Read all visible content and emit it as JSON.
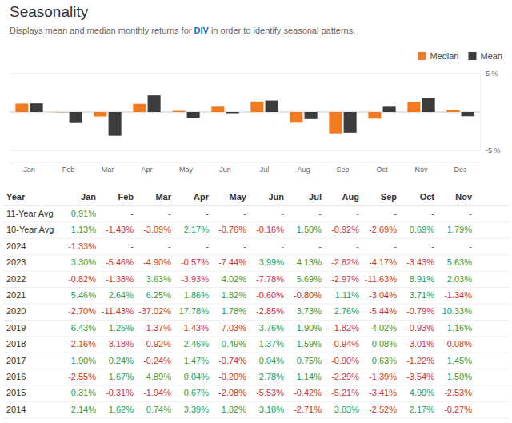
{
  "header": {
    "title": "Seasonality",
    "subtitle": [
      "Displays mean and median monthly returns for ",
      "DIV",
      " in order to identify seasonal patterns."
    ]
  },
  "chart_data": {
    "type": "bar",
    "categories": [
      "Jan",
      "Feb",
      "Mar",
      "Apr",
      "May",
      "Jun",
      "Jul",
      "Aug",
      "Sep",
      "Oct",
      "Nov",
      "Dec"
    ],
    "series": [
      {
        "name": "Median",
        "color": "#f47a1f",
        "values": [
          1.1,
          -0.04,
          -0.58,
          1.07,
          0.15,
          0.7,
          1.37,
          -1.38,
          -2.78,
          -0.86,
          1.31,
          0.3
        ]
      },
      {
        "name": "Mean",
        "color": "#3c3c3c",
        "values": [
          1.13,
          -1.43,
          -3.09,
          2.17,
          -0.76,
          -0.16,
          1.5,
          -0.92,
          -2.69,
          0.69,
          1.79,
          -0.55
        ]
      }
    ],
    "ylim": [
      -5,
      5
    ],
    "yticks": [
      {
        "value": 5,
        "label": "5 %"
      },
      {
        "value": -5,
        "label": "-5 %"
      }
    ],
    "grid": true,
    "legend": "top-right"
  },
  "table": {
    "columns": [
      "Year",
      "Jan",
      "Feb",
      "Mar",
      "Apr",
      "May",
      "Jun",
      "Jul",
      "Aug",
      "Sep",
      "Oct",
      "Nov"
    ],
    "rows": [
      {
        "year": "11-Year Avg",
        "values": [
          "0.91%",
          "-",
          "-",
          "-",
          "-",
          "-",
          "-",
          "-",
          "-",
          "-",
          "-"
        ]
      },
      {
        "year": "10-Year Avg",
        "values": [
          "1.13%",
          "-1.43%",
          "-3.09%",
          "2.17%",
          "-0.76%",
          "-0.16%",
          "1.50%",
          "-0.92%",
          "-2.69%",
          "0.69%",
          "1.79%"
        ]
      },
      {
        "year": "2024",
        "values": [
          "-1.33%",
          "-",
          "-",
          "-",
          "-",
          "-",
          "-",
          "-",
          "-",
          "-",
          "-"
        ]
      },
      {
        "year": "2023",
        "values": [
          "3.30%",
          "-5.46%",
          "-4.90%",
          "-0.57%",
          "-7.44%",
          "3.99%",
          "4.13%",
          "-2.82%",
          "-4.17%",
          "-3.43%",
          "5.63%"
        ]
      },
      {
        "year": "2022",
        "values": [
          "-0.82%",
          "-1.38%",
          "3.63%",
          "-3.93%",
          "4.02%",
          "-7.78%",
          "5.69%",
          "-2.97%",
          "-11.63%",
          "8.91%",
          "2.03%"
        ]
      },
      {
        "year": "2021",
        "values": [
          "5.46%",
          "2.64%",
          "6.25%",
          "1.86%",
          "1.82%",
          "-0.60%",
          "-0.80%",
          "1.11%",
          "-3.04%",
          "3.71%",
          "-1.34%"
        ]
      },
      {
        "year": "2020",
        "values": [
          "-2.70%",
          "-11.43%",
          "-37.02%",
          "17.78%",
          "1.78%",
          "-2.85%",
          "3.73%",
          "2.76%",
          "-5.44%",
          "-0.79%",
          "10.33%"
        ]
      },
      {
        "year": "2019",
        "values": [
          "6.43%",
          "1.26%",
          "-1.37%",
          "-1.43%",
          "-7.03%",
          "3.76%",
          "1.90%",
          "-1.82%",
          "4.02%",
          "-0.93%",
          "1.16%"
        ]
      },
      {
        "year": "2018",
        "values": [
          "-2.16%",
          "-3.18%",
          "-0.92%",
          "2.46%",
          "0.49%",
          "1.37%",
          "1.59%",
          "-0.94%",
          "0.08%",
          "-3.01%",
          "-0.08%"
        ]
      },
      {
        "year": "2017",
        "values": [
          "1.90%",
          "0.24%",
          "-0.24%",
          "1.47%",
          "-0.74%",
          "0.04%",
          "0.75%",
          "-0.90%",
          "0.63%",
          "-1.22%",
          "1.45%"
        ]
      },
      {
        "year": "2016",
        "values": [
          "-2.55%",
          "1.67%",
          "4.89%",
          "0.04%",
          "-0.20%",
          "2.78%",
          "1.14%",
          "-2.29%",
          "-1.39%",
          "-3.54%",
          "1.50%"
        ]
      },
      {
        "year": "2015",
        "values": [
          "0.31%",
          "-0.31%",
          "-1.94%",
          "0.67%",
          "-2.08%",
          "-5.53%",
          "-0.42%",
          "-5.21%",
          "-3.41%",
          "4.99%",
          "-2.53%"
        ]
      },
      {
        "year": "2014",
        "values": [
          "2.14%",
          "1.62%",
          "0.74%",
          "3.39%",
          "1.82%",
          "3.18%",
          "-2.71%",
          "3.83%",
          "-2.52%",
          "2.17%",
          "-0.27%"
        ]
      }
    ]
  }
}
